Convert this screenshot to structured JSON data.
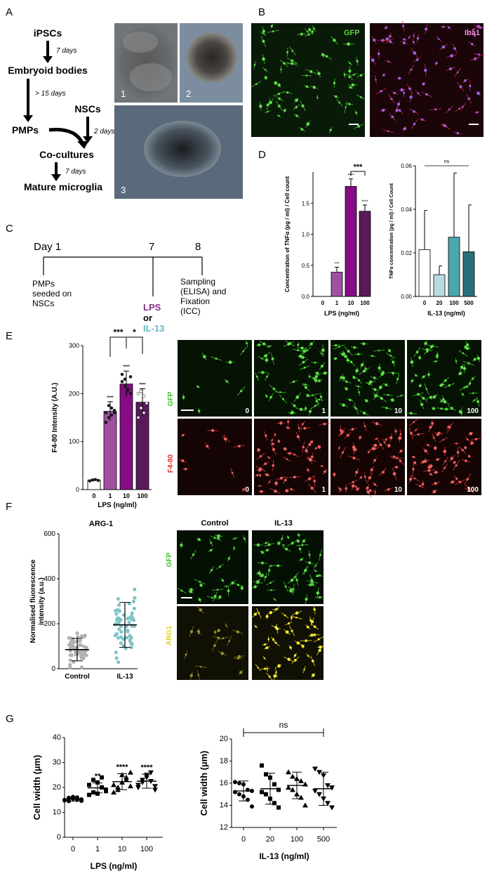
{
  "panels": {
    "A": {
      "letter": "A",
      "flow": {
        "ipscs": "iPSCs",
        "d7a": "7 days",
        "eb": "Embryoid bodies",
        "d15": "> 15 days",
        "nscs": "NSCs",
        "pmps": "PMPs",
        "d2": "2 days",
        "cocult": "Co-cultures",
        "d7b": "7 days",
        "mature": "Mature microglia"
      },
      "photo_labels": [
        "1",
        "2",
        "3"
      ]
    },
    "B": {
      "letter": "B",
      "labels": [
        "GFP",
        "Iba1"
      ]
    },
    "C": {
      "letter": "C",
      "days": [
        "Day 1",
        "7",
        "8"
      ],
      "pmps_text": [
        "PMPs",
        "seeded on",
        "NSCs"
      ],
      "lps": "LPS",
      "or": "or",
      "il13": "IL-13",
      "sampling_text": [
        "Sampling",
        "(ELISA) and",
        "Fixation",
        "(ICC)"
      ],
      "colors": {
        "lps": "#8a2a8a",
        "il13": "#6ab4c4"
      }
    },
    "D": {
      "letter": "D",
      "left_ylabel": [
        "Concentration of TNFα (pg / ml) / Cell count"
      ],
      "right_ylabel": [
        "TNFα concentration (pg / ml) / Cell Count"
      ]
    },
    "E": {
      "letter": "E",
      "row_labels": [
        "GFP",
        "F4-80"
      ],
      "lps_labels": [
        "0",
        "1",
        "10",
        "100"
      ]
    },
    "F": {
      "letter": "F",
      "col_labels": [
        "Control",
        "IL-13"
      ],
      "row_labels": [
        "GFP",
        "ARG1"
      ]
    },
    "G": {
      "letter": "G"
    }
  },
  "chart_data": [
    {
      "id": "D-left",
      "type": "bar",
      "categories": [
        "0",
        "1",
        "10",
        "100"
      ],
      "values": [
        0,
        0.39,
        1.77,
        1.37
      ],
      "errors": [
        0,
        0.08,
        0.12,
        0.1
      ],
      "xlabel": "LPS (ng/ml)",
      "ylabel": "Concentration of TNFα (pg / ml) / Cell count",
      "ylim": [
        0,
        2.0
      ],
      "yticks": [
        "0.0",
        "0.5",
        "1.0",
        "1.5"
      ],
      "colors": [
        "#ffffff",
        "#a050a0",
        "#860c86",
        "#5a1a5a"
      ],
      "annotations": [
        "",
        "***",
        "****",
        "****"
      ],
      "bracket": "***"
    },
    {
      "id": "D-right",
      "type": "bar",
      "categories": [
        "0",
        "20",
        "100",
        "500"
      ],
      "values": [
        0.0215,
        0.01,
        0.0272,
        0.0205
      ],
      "errors": [
        0.018,
        0.004,
        0.0295,
        0.0215
      ],
      "xlabel": "IL-13 (ng/ml)",
      "ylabel": "TNFα concentration (pg / ml) / Cell Count",
      "ylim": [
        0,
        0.06
      ],
      "yticks": [
        "0.00",
        "0.02",
        "0.04",
        "0.06"
      ],
      "colors": [
        "#ffffff",
        "#b8dbe0",
        "#4aa8ac",
        "#2a6e7a"
      ],
      "bracket": "ns"
    },
    {
      "id": "E",
      "type": "bar",
      "categories": [
        "0",
        "1",
        "10",
        "100"
      ],
      "values": [
        20,
        163,
        220,
        182
      ],
      "errors": [
        2,
        20,
        27,
        28
      ],
      "xlabel": "LPS (ng/ml)",
      "ylabel": "F4-80 Intensity (A.U.)",
      "ylim": [
        0,
        300
      ],
      "yticks": [
        "0",
        "100",
        "200",
        "300"
      ],
      "colors": [
        "#ffffff",
        "#a050a0",
        "#860c86",
        "#5a1a5a"
      ],
      "annotations": [
        "",
        "****",
        "****",
        "****"
      ],
      "brackets": [
        "***",
        "*"
      ],
      "points": [
        [
          18,
          20,
          21,
          19
        ],
        [
          160,
          150,
          170,
          165,
          140,
          175,
          155,
          160
        ],
        [
          240,
          230,
          210,
          200,
          225,
          215,
          205,
          235
        ],
        [
          200,
          205,
          195,
          180,
          150,
          170,
          160
        ]
      ]
    },
    {
      "id": "F",
      "type": "scatter",
      "title": "ARG-1",
      "categories": [
        "Control",
        "IL-13"
      ],
      "means": [
        85,
        195
      ],
      "sd": [
        50,
        100
      ],
      "ylabel": "Normalised fluorescence intensity (a.u.)",
      "ylim": [
        0,
        600
      ],
      "yticks": [
        "0",
        "200",
        "400",
        "600"
      ],
      "colors": [
        "#b0b0b0",
        "#7ec4c8"
      ]
    },
    {
      "id": "G-left",
      "type": "scatter",
      "categories": [
        "0",
        "1",
        "10",
        "100"
      ],
      "means": [
        15.3,
        19.8,
        22.3,
        22.5
      ],
      "sd": [
        0.8,
        2.0,
        3.2,
        2.8
      ],
      "xlabel": "LPS (ng/ml)",
      "ylabel": "Cell width (µm)",
      "ylim": [
        0,
        40
      ],
      "yticks": [
        "0",
        "10",
        "20",
        "30",
        "40"
      ],
      "annotations": [
        "",
        "**",
        "****",
        "****"
      ],
      "points": [
        [
          15,
          14.5,
          15.5,
          16,
          15.2,
          14.8,
          15.8,
          16.2,
          15,
          14.6
        ],
        [
          17,
          18,
          22,
          20,
          19,
          21,
          23,
          17.5,
          24,
          18.5
        ],
        [
          18,
          20,
          22,
          24,
          26,
          21,
          19,
          25,
          23,
          20.5
        ],
        [
          20,
          22,
          24,
          26,
          19,
          21,
          23,
          25,
          22.5,
          20.5
        ]
      ]
    },
    {
      "id": "G-right",
      "type": "scatter",
      "categories": [
        "0",
        "20",
        "100",
        "500"
      ],
      "means": [
        15.3,
        15.5,
        15.8,
        15.5
      ],
      "sd": [
        0.9,
        1.4,
        1.2,
        1.5
      ],
      "xlabel": "IL-13 (ng/ml)",
      "ylabel": "Cell width (µm)",
      "ylim": [
        12,
        20
      ],
      "yticks": [
        "12",
        "14",
        "16",
        "18",
        "20"
      ],
      "bracket": "ns",
      "points": [
        [
          16.1,
          16,
          15.9,
          15.4,
          15.3,
          15.2,
          15,
          14.8,
          14.5,
          13.9
        ],
        [
          17.6,
          16.8,
          16.5,
          15.9,
          15.4,
          15.2,
          15,
          14.6,
          14.2,
          13.8
        ],
        [
          17,
          16.6,
          16.4,
          16.2,
          15.9,
          15.6,
          15.4,
          15,
          14.7,
          14
        ],
        [
          17.3,
          17,
          16.7,
          15.8,
          15.6,
          15.3,
          15,
          14.6,
          14.2,
          13.8
        ]
      ]
    }
  ]
}
